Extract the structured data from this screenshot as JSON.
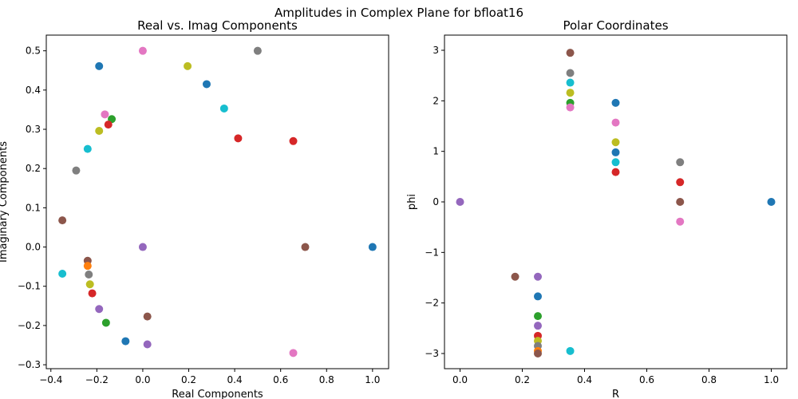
{
  "figure": {
    "suptitle": "Amplitudes in Complex Plane for bfloat16"
  },
  "chart_data": [
    {
      "type": "scatter",
      "title": "Real vs. Imag Components",
      "xlabel": "Real Components",
      "ylabel": "Imaginary Components",
      "xlim": [
        -0.42,
        1.07
      ],
      "ylim": [
        -0.31,
        0.54
      ],
      "xticks": [
        -0.4,
        -0.2,
        0.0,
        0.2,
        0.4,
        0.6,
        0.8,
        1.0
      ],
      "xtick_labels": [
        "−0.4",
        "−0.2",
        "0.0",
        "0.2",
        "0.4",
        "0.6",
        "0.8",
        "1.0"
      ],
      "yticks": [
        -0.3,
        -0.2,
        -0.1,
        0.0,
        0.1,
        0.2,
        0.3,
        0.4,
        0.5
      ],
      "ytick_labels": [
        "−0.3",
        "−0.2",
        "−0.1",
        "0.0",
        "0.1",
        "0.2",
        "0.3",
        "0.4",
        "0.5"
      ],
      "grid": false,
      "points": [
        {
          "x": 1.0,
          "y": 0.0,
          "color": "#1f77b4"
        },
        {
          "x": 0.707,
          "y": 0.0,
          "color": "#8c564b"
        },
        {
          "x": 0.5,
          "y": 0.5,
          "color": "#7f7f7f"
        },
        {
          "x": 0.655,
          "y": 0.27,
          "color": "#d62728"
        },
        {
          "x": 0.655,
          "y": -0.27,
          "color": "#e377c2"
        },
        {
          "x": 0.415,
          "y": 0.277,
          "color": "#d62728"
        },
        {
          "x": 0.354,
          "y": 0.353,
          "color": "#17becf"
        },
        {
          "x": 0.278,
          "y": 0.415,
          "color": "#1f77b4"
        },
        {
          "x": 0.195,
          "y": 0.461,
          "color": "#bcbd22"
        },
        {
          "x": 0.0,
          "y": 0.5,
          "color": "#e377c2"
        },
        {
          "x": -0.19,
          "y": 0.461,
          "color": "#1f77b4"
        },
        {
          "x": -0.165,
          "y": 0.338,
          "color": "#e377c2"
        },
        {
          "x": -0.135,
          "y": 0.326,
          "color": "#2ca02c"
        },
        {
          "x": -0.15,
          "y": 0.312,
          "color": "#d62728"
        },
        {
          "x": -0.19,
          "y": 0.296,
          "color": "#bcbd22"
        },
        {
          "x": -0.24,
          "y": 0.25,
          "color": "#17becf"
        },
        {
          "x": -0.29,
          "y": 0.195,
          "color": "#7f7f7f"
        },
        {
          "x": -0.35,
          "y": 0.068,
          "color": "#8c564b"
        },
        {
          "x": 0.0,
          "y": 0.0,
          "color": "#9467bd"
        },
        {
          "x": -0.35,
          "y": -0.068,
          "color": "#17becf"
        },
        {
          "x": -0.24,
          "y": -0.035,
          "color": "#8c564b"
        },
        {
          "x": -0.24,
          "y": -0.048,
          "color": "#ff7f0e"
        },
        {
          "x": -0.235,
          "y": -0.07,
          "color": "#7f7f7f"
        },
        {
          "x": -0.23,
          "y": -0.095,
          "color": "#bcbd22"
        },
        {
          "x": -0.22,
          "y": -0.118,
          "color": "#d62728"
        },
        {
          "x": -0.19,
          "y": -0.158,
          "color": "#9467bd"
        },
        {
          "x": -0.16,
          "y": -0.193,
          "color": "#2ca02c"
        },
        {
          "x": -0.075,
          "y": -0.24,
          "color": "#1f77b4"
        },
        {
          "x": 0.02,
          "y": -0.177,
          "color": "#8c564b"
        },
        {
          "x": 0.02,
          "y": -0.248,
          "color": "#9467bd"
        }
      ]
    },
    {
      "type": "scatter",
      "title": "Polar Coordinates",
      "xlabel": "R",
      "ylabel": "phi",
      "xlim": [
        -0.05,
        1.05
      ],
      "ylim": [
        -3.3,
        3.3
      ],
      "xticks": [
        0.0,
        0.2,
        0.4,
        0.6,
        0.8,
        1.0
      ],
      "xtick_labels": [
        "0.0",
        "0.2",
        "0.4",
        "0.6",
        "0.8",
        "1.0"
      ],
      "yticks": [
        -3,
        -2,
        -1,
        0,
        1,
        2,
        3
      ],
      "ytick_labels": [
        "−3",
        "−2",
        "−1",
        "0",
        "1",
        "2",
        "3"
      ],
      "grid": false,
      "points": [
        {
          "x": 0.0,
          "y": 0.0,
          "color": "#9467bd"
        },
        {
          "x": 1.0,
          "y": 0.0,
          "color": "#1f77b4"
        },
        {
          "x": 0.707,
          "y": 0.785,
          "color": "#7f7f7f"
        },
        {
          "x": 0.707,
          "y": 0.39,
          "color": "#d62728"
        },
        {
          "x": 0.707,
          "y": 0.0,
          "color": "#8c564b"
        },
        {
          "x": 0.707,
          "y": -0.39,
          "color": "#e377c2"
        },
        {
          "x": 0.5,
          "y": 1.96,
          "color": "#1f77b4"
        },
        {
          "x": 0.5,
          "y": 1.57,
          "color": "#e377c2"
        },
        {
          "x": 0.5,
          "y": 1.18,
          "color": "#bcbd22"
        },
        {
          "x": 0.5,
          "y": 0.98,
          "color": "#1f77b4"
        },
        {
          "x": 0.5,
          "y": 0.785,
          "color": "#17becf"
        },
        {
          "x": 0.5,
          "y": 0.59,
          "color": "#d62728"
        },
        {
          "x": 0.354,
          "y": 2.95,
          "color": "#8c564b"
        },
        {
          "x": 0.354,
          "y": 2.55,
          "color": "#7f7f7f"
        },
        {
          "x": 0.354,
          "y": 2.36,
          "color": "#17becf"
        },
        {
          "x": 0.354,
          "y": 2.16,
          "color": "#bcbd22"
        },
        {
          "x": 0.354,
          "y": 1.96,
          "color": "#2ca02c"
        },
        {
          "x": 0.354,
          "y": 1.87,
          "color": "#e377c2"
        },
        {
          "x": 0.354,
          "y": -2.95,
          "color": "#17becf"
        },
        {
          "x": 0.177,
          "y": -1.48,
          "color": "#8c564b"
        },
        {
          "x": 0.25,
          "y": -1.48,
          "color": "#9467bd"
        },
        {
          "x": 0.25,
          "y": -1.87,
          "color": "#1f77b4"
        },
        {
          "x": 0.25,
          "y": -2.26,
          "color": "#2ca02c"
        },
        {
          "x": 0.25,
          "y": -2.45,
          "color": "#9467bd"
        },
        {
          "x": 0.25,
          "y": -2.65,
          "color": "#d62728"
        },
        {
          "x": 0.25,
          "y": -2.75,
          "color": "#bcbd22"
        },
        {
          "x": 0.25,
          "y": -2.85,
          "color": "#7f7f7f"
        },
        {
          "x": 0.25,
          "y": -2.95,
          "color": "#ff7f0e"
        },
        {
          "x": 0.25,
          "y": -3.0,
          "color": "#8c564b"
        }
      ]
    }
  ]
}
